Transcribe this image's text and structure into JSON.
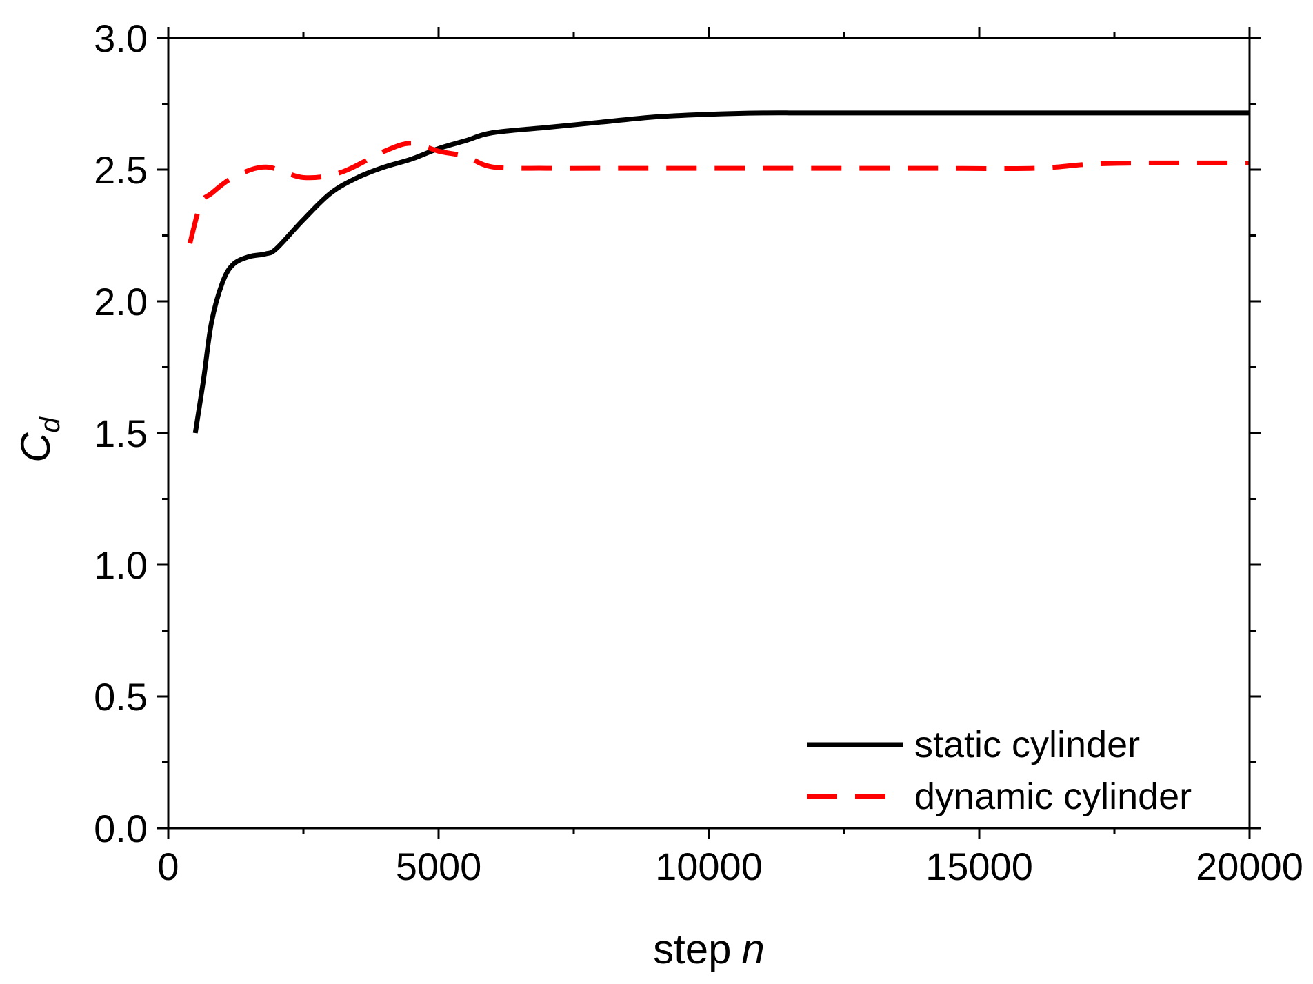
{
  "chart_data": {
    "type": "line",
    "title": "",
    "xlabel": "step",
    "xlabel_var": "n",
    "ylabel": "C",
    "ylabel_sub": "d",
    "xlim": [
      0,
      20000
    ],
    "ylim": [
      0.0,
      3.0
    ],
    "x_ticks": [
      0,
      5000,
      10000,
      15000,
      20000
    ],
    "x_tick_labels": [
      "0",
      "5000",
      "10000",
      "15000",
      "20000"
    ],
    "y_ticks": [
      0.0,
      0.5,
      1.0,
      1.5,
      2.0,
      2.5,
      3.0
    ],
    "y_tick_labels": [
      "0.0",
      "0.5",
      "1.0",
      "1.5",
      "2.0",
      "2.5",
      "3.0"
    ],
    "grid": false,
    "legend_position": "bottom-right",
    "series": [
      {
        "name": "static cylinder",
        "color": "#000000",
        "style": "solid",
        "x": [
          500,
          650,
          800,
          1000,
          1200,
          1500,
          1800,
          2000,
          2500,
          3000,
          3500,
          4000,
          4500,
          5000,
          5500,
          6000,
          7000,
          8000,
          9000,
          10000,
          11000,
          12000,
          15000,
          20000
        ],
        "y": [
          1.5,
          1.7,
          1.92,
          2.07,
          2.14,
          2.17,
          2.18,
          2.2,
          2.31,
          2.41,
          2.47,
          2.51,
          2.54,
          2.58,
          2.61,
          2.64,
          2.66,
          2.68,
          2.7,
          2.71,
          2.715,
          2.715,
          2.715,
          2.715
        ]
      },
      {
        "name": "dynamic cylinder",
        "color": "#ff0000",
        "style": "dashed",
        "x": [
          400,
          600,
          800,
          1200,
          1800,
          2500,
          3200,
          4000,
          4500,
          5000,
          5500,
          6000,
          7000,
          8000,
          10000,
          12000,
          14000,
          16000,
          17000,
          18000,
          20000
        ],
        "y": [
          2.22,
          2.37,
          2.41,
          2.47,
          2.51,
          2.47,
          2.49,
          2.57,
          2.6,
          2.57,
          2.55,
          2.51,
          2.505,
          2.505,
          2.505,
          2.505,
          2.505,
          2.505,
          2.52,
          2.525,
          2.525
        ]
      }
    ]
  }
}
